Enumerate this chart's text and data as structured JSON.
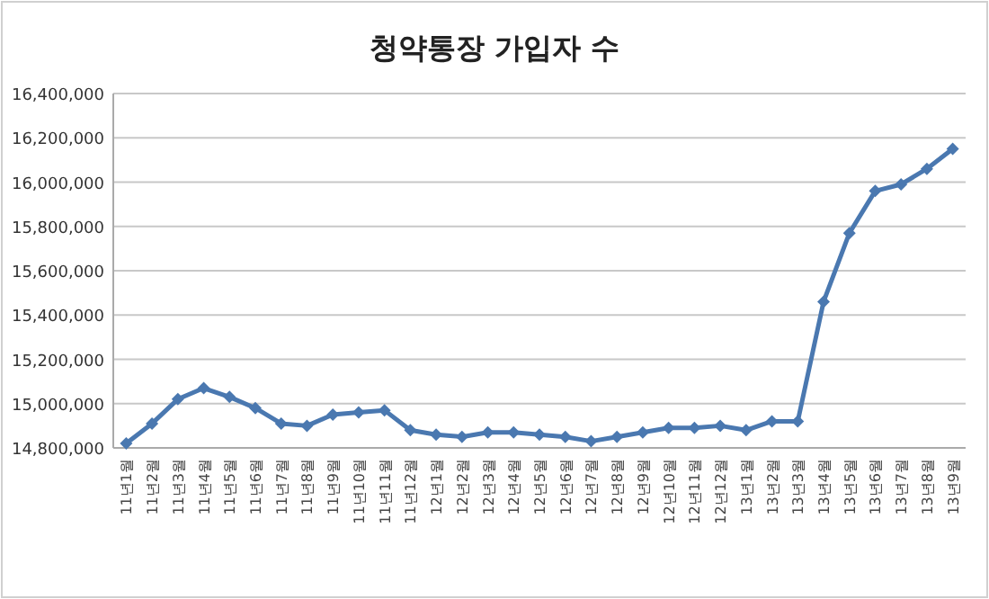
{
  "chart_data": {
    "type": "line",
    "title": "청약통장 가입자 수",
    "categories": [
      "11년1월",
      "11년2월",
      "11년3월",
      "11년4월",
      "11년5월",
      "11년6월",
      "11년7월",
      "11년8월",
      "11년9월",
      "11년10월",
      "11년11월",
      "11년12월",
      "12년1월",
      "12년2월",
      "12년3월",
      "12년4월",
      "12년5월",
      "12년6월",
      "12년7월",
      "12년8월",
      "12년9월",
      "12년10월",
      "12년11월",
      "12년12월",
      "13년1월",
      "13년2월",
      "13년3월",
      "13년4월",
      "13년5월",
      "13년6월",
      "13년7월",
      "13년8월",
      "13년9월"
    ],
    "series": [
      {
        "color": "#4a78b0",
        "values": [
          14820000,
          14910000,
          15020000,
          15070000,
          15030000,
          14980000,
          14910000,
          14900000,
          14950000,
          14960000,
          14970000,
          14880000,
          14860000,
          14850000,
          14870000,
          14870000,
          14860000,
          14850000,
          14830000,
          14850000,
          14870000,
          14890000,
          14890000,
          14900000,
          14880000,
          14920000,
          14920000,
          15460000,
          15770000,
          15960000,
          15990000,
          16060000,
          16150000
        ]
      }
    ],
    "ylim": [
      14800000,
      16400000
    ],
    "yticks": [
      {
        "value": 14800000,
        "label": "14,800,000"
      },
      {
        "value": 15000000,
        "label": "15,000,000"
      },
      {
        "value": 15200000,
        "label": "15,200,000"
      },
      {
        "value": 15400000,
        "label": "15,400,000"
      },
      {
        "value": 15600000,
        "label": "15,600,000"
      },
      {
        "value": 15800000,
        "label": "15,800,000"
      },
      {
        "value": 16000000,
        "label": "16,000,000"
      },
      {
        "value": 16200000,
        "label": "16,200,000"
      },
      {
        "value": 16400000,
        "label": "16,400,000"
      }
    ],
    "grid": "y",
    "marker": "diamond",
    "line_style": "solid"
  }
}
